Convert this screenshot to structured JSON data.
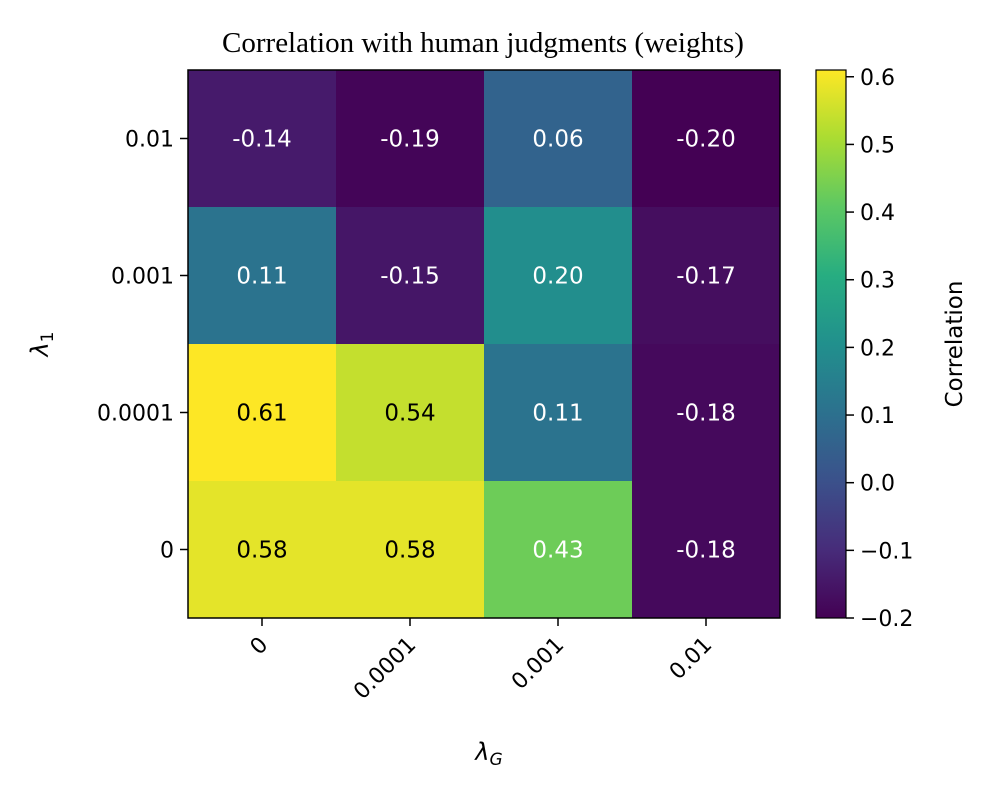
{
  "chart_data": {
    "type": "heatmap",
    "title": "Correlation with human judgments (weights)",
    "xlabel": "λ_G",
    "ylabel": "λ_1",
    "x_categories": [
      "0",
      "0.0001",
      "0.001",
      "0.01"
    ],
    "y_categories": [
      "0.01",
      "0.001",
      "0.0001",
      "0"
    ],
    "values": [
      [
        -0.14,
        -0.19,
        0.06,
        -0.2
      ],
      [
        0.11,
        -0.15,
        0.2,
        -0.17
      ],
      [
        0.61,
        0.54,
        0.11,
        -0.18
      ],
      [
        0.58,
        0.58,
        0.43,
        -0.18
      ]
    ],
    "value_labels": [
      [
        "-0.14",
        "-0.19",
        "0.06",
        "-0.20"
      ],
      [
        "0.11",
        "-0.15",
        "0.20",
        "-0.17"
      ],
      [
        "0.61",
        "0.54",
        "0.11",
        "-0.18"
      ],
      [
        "0.58",
        "0.58",
        "0.43",
        "-0.18"
      ]
    ],
    "colormap": "viridis",
    "colorbar": {
      "label": "Correlation",
      "vmin": -0.2,
      "vmax": 0.61,
      "ticks": [
        -0.2,
        -0.1,
        0.0,
        0.1,
        0.2,
        0.3,
        0.4,
        0.5,
        0.6
      ],
      "tick_labels": [
        "−0.2",
        "−0.1",
        "0.0",
        "0.1",
        "0.2",
        "0.3",
        "0.4",
        "0.5",
        "0.6"
      ]
    }
  }
}
